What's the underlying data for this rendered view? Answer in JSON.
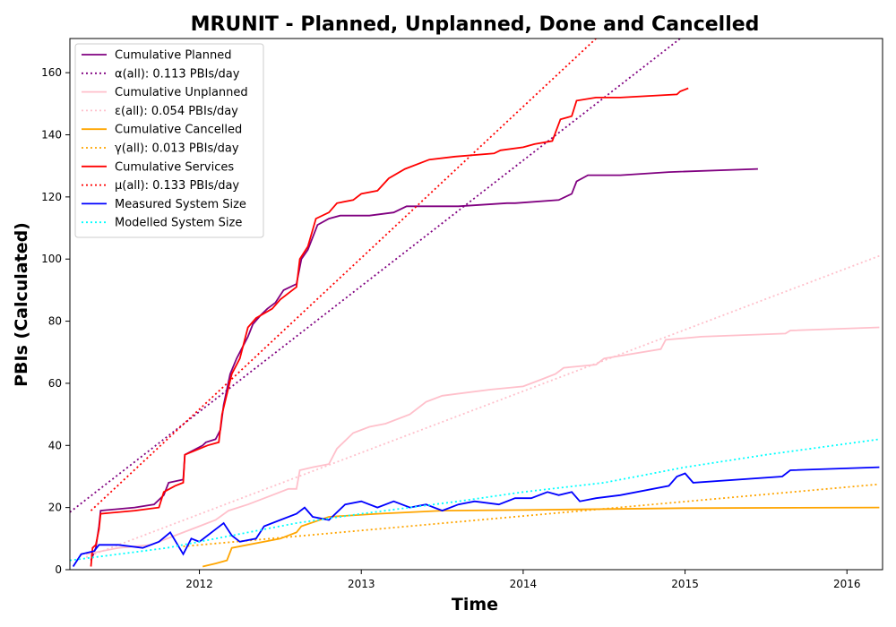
{
  "chart_data": {
    "type": "line",
    "title": "MRUNIT - Planned, Unplanned, Done  and Cancelled",
    "xlabel": "Time",
    "ylabel": "PBIs (Calculated)",
    "xlim": [
      2011.2,
      2016.22
    ],
    "ylim": [
      0,
      171
    ],
    "x_ticks": [
      2012,
      2013,
      2014,
      2015,
      2016
    ],
    "y_ticks": [
      0,
      20,
      40,
      60,
      80,
      100,
      120,
      140,
      160
    ],
    "grid": false,
    "legend_position": "upper-left",
    "series": [
      {
        "name": "Cumulative Planned",
        "style": "solid",
        "color": "#800080",
        "points": [
          [
            2011.33,
            3
          ],
          [
            2011.36,
            7
          ],
          [
            2011.38,
            14
          ],
          [
            2011.39,
            19
          ],
          [
            2011.6,
            20
          ],
          [
            2011.72,
            21
          ],
          [
            2011.78,
            24
          ],
          [
            2011.81,
            28
          ],
          [
            2011.9,
            29
          ],
          [
            2011.91,
            37
          ],
          [
            2012.02,
            40
          ],
          [
            2012.04,
            41
          ],
          [
            2012.1,
            42
          ],
          [
            2012.13,
            45
          ],
          [
            2012.15,
            53
          ],
          [
            2012.19,
            63
          ],
          [
            2012.23,
            68
          ],
          [
            2012.26,
            71
          ],
          [
            2012.3,
            75
          ],
          [
            2012.33,
            79
          ],
          [
            2012.38,
            82
          ],
          [
            2012.42,
            84
          ],
          [
            2012.47,
            86
          ],
          [
            2012.52,
            90
          ],
          [
            2012.6,
            92
          ],
          [
            2012.63,
            100
          ],
          [
            2012.67,
            103
          ],
          [
            2012.73,
            111
          ],
          [
            2012.8,
            113
          ],
          [
            2012.87,
            114
          ],
          [
            2012.97,
            114
          ],
          [
            2013.05,
            114
          ],
          [
            2013.2,
            115
          ],
          [
            2013.28,
            117
          ],
          [
            2013.6,
            117
          ],
          [
            2013.9,
            118
          ],
          [
            2013.95,
            118
          ],
          [
            2014.22,
            119
          ],
          [
            2014.3,
            121
          ],
          [
            2014.33,
            125
          ],
          [
            2014.4,
            127
          ],
          [
            2014.6,
            127
          ],
          [
            2014.9,
            128
          ],
          [
            2015.45,
            129
          ]
        ]
      },
      {
        "name": "α(all): 0.113 PBIs/day",
        "style": "dotted",
        "color": "#800080",
        "points": [
          [
            2011.2,
            18.5
          ],
          [
            2014.97,
            171
          ]
        ]
      },
      {
        "name": "Cumulative Unplanned",
        "style": "solid",
        "color": "#ffc0cb",
        "points": [
          [
            2011.3,
            5
          ],
          [
            2011.5,
            7
          ],
          [
            2011.7,
            8
          ],
          [
            2011.85,
            11
          ],
          [
            2012.0,
            14
          ],
          [
            2012.1,
            16
          ],
          [
            2012.18,
            19
          ],
          [
            2012.3,
            21
          ],
          [
            2012.45,
            24
          ],
          [
            2012.55,
            26
          ],
          [
            2012.6,
            26
          ],
          [
            2012.62,
            32
          ],
          [
            2012.7,
            33
          ],
          [
            2012.8,
            34
          ],
          [
            2012.85,
            39
          ],
          [
            2012.95,
            44
          ],
          [
            2013.05,
            46
          ],
          [
            2013.15,
            47
          ],
          [
            2013.3,
            50
          ],
          [
            2013.4,
            54
          ],
          [
            2013.5,
            56
          ],
          [
            2013.8,
            58
          ],
          [
            2014.0,
            59
          ],
          [
            2014.1,
            61
          ],
          [
            2014.2,
            63
          ],
          [
            2014.25,
            65
          ],
          [
            2014.45,
            66
          ],
          [
            2014.5,
            68
          ],
          [
            2014.85,
            71
          ],
          [
            2014.88,
            74
          ],
          [
            2015.1,
            75
          ],
          [
            2015.62,
            76
          ],
          [
            2015.65,
            77
          ],
          [
            2016.2,
            78
          ]
        ]
      },
      {
        "name": "ε(all): 0.054 PBIs/day",
        "style": "dotted",
        "color": "#ffc0cb",
        "points": [
          [
            2011.3,
            4
          ],
          [
            2016.2,
            101
          ]
        ]
      },
      {
        "name": "Cumulative Cancelled",
        "style": "solid",
        "color": "#ffa500",
        "points": [
          [
            2012.02,
            1
          ],
          [
            2012.1,
            2
          ],
          [
            2012.17,
            3
          ],
          [
            2012.2,
            7
          ],
          [
            2012.5,
            10
          ],
          [
            2012.6,
            12
          ],
          [
            2012.63,
            14
          ],
          [
            2012.8,
            17
          ],
          [
            2013.1,
            18
          ],
          [
            2013.5,
            19
          ],
          [
            2014.0,
            19.2
          ],
          [
            2015.0,
            19.8
          ],
          [
            2016.2,
            20
          ]
        ]
      },
      {
        "name": "γ(all): 0.013 PBIs/day",
        "style": "dotted",
        "color": "#ffa500",
        "points": [
          [
            2011.9,
            7.5
          ],
          [
            2016.2,
            27.5
          ]
        ]
      },
      {
        "name": "Cumulative Services",
        "style": "solid",
        "color": "#ff0000",
        "points": [
          [
            2011.33,
            1
          ],
          [
            2011.34,
            7
          ],
          [
            2011.36,
            8
          ],
          [
            2011.38,
            13
          ],
          [
            2011.39,
            18
          ],
          [
            2011.6,
            19
          ],
          [
            2011.75,
            20
          ],
          [
            2011.78,
            25
          ],
          [
            2011.85,
            27
          ],
          [
            2011.9,
            28
          ],
          [
            2011.91,
            37
          ],
          [
            2012.05,
            40
          ],
          [
            2012.12,
            41
          ],
          [
            2012.14,
            50
          ],
          [
            2012.2,
            63
          ],
          [
            2012.25,
            68
          ],
          [
            2012.3,
            78
          ],
          [
            2012.35,
            81
          ],
          [
            2012.45,
            84
          ],
          [
            2012.5,
            87
          ],
          [
            2012.6,
            91
          ],
          [
            2012.62,
            100
          ],
          [
            2012.67,
            104
          ],
          [
            2012.72,
            113
          ],
          [
            2012.8,
            115
          ],
          [
            2012.85,
            118
          ],
          [
            2012.95,
            119
          ],
          [
            2013.0,
            121
          ],
          [
            2013.1,
            122
          ],
          [
            2013.17,
            126
          ],
          [
            2013.27,
            129
          ],
          [
            2013.42,
            132
          ],
          [
            2013.58,
            133
          ],
          [
            2013.82,
            134
          ],
          [
            2013.86,
            135
          ],
          [
            2014.0,
            136
          ],
          [
            2014.07,
            137
          ],
          [
            2014.18,
            138
          ],
          [
            2014.23,
            145
          ],
          [
            2014.3,
            146
          ],
          [
            2014.33,
            151
          ],
          [
            2014.45,
            152
          ],
          [
            2014.6,
            152
          ],
          [
            2014.95,
            153
          ],
          [
            2014.97,
            154
          ],
          [
            2015.02,
            155
          ]
        ]
      },
      {
        "name": "μ(all): 0.133 PBIs/day",
        "style": "dotted",
        "color": "#ff0000",
        "points": [
          [
            2011.33,
            19
          ],
          [
            2014.45,
            171
          ]
        ]
      },
      {
        "name": "Measured System Size",
        "style": "solid",
        "color": "#0000ff",
        "points": [
          [
            2011.22,
            1
          ],
          [
            2011.27,
            5
          ],
          [
            2011.35,
            6
          ],
          [
            2011.38,
            8
          ],
          [
            2011.5,
            8
          ],
          [
            2011.65,
            7
          ],
          [
            2011.75,
            9
          ],
          [
            2011.82,
            12
          ],
          [
            2011.9,
            5
          ],
          [
            2011.95,
            10
          ],
          [
            2012.0,
            9
          ],
          [
            2012.05,
            11
          ],
          [
            2012.1,
            13
          ],
          [
            2012.15,
            15
          ],
          [
            2012.2,
            11
          ],
          [
            2012.25,
            9
          ],
          [
            2012.35,
            10
          ],
          [
            2012.4,
            14
          ],
          [
            2012.5,
            16
          ],
          [
            2012.6,
            18
          ],
          [
            2012.65,
            20
          ],
          [
            2012.7,
            17
          ],
          [
            2012.8,
            16
          ],
          [
            2012.9,
            21
          ],
          [
            2013.0,
            22
          ],
          [
            2013.1,
            20
          ],
          [
            2013.2,
            22
          ],
          [
            2013.3,
            20
          ],
          [
            2013.4,
            21
          ],
          [
            2013.5,
            19
          ],
          [
            2013.6,
            21
          ],
          [
            2013.7,
            22
          ],
          [
            2013.85,
            21
          ],
          [
            2013.95,
            23
          ],
          [
            2014.05,
            23
          ],
          [
            2014.15,
            25
          ],
          [
            2014.22,
            24
          ],
          [
            2014.3,
            25
          ],
          [
            2014.35,
            22
          ],
          [
            2014.45,
            23
          ],
          [
            2014.6,
            24
          ],
          [
            2014.9,
            27
          ],
          [
            2014.95,
            30
          ],
          [
            2015.0,
            31
          ],
          [
            2015.05,
            28
          ],
          [
            2015.6,
            30
          ],
          [
            2015.65,
            32
          ],
          [
            2016.2,
            33
          ]
        ]
      },
      {
        "name": "Modelled System Size",
        "style": "dotted",
        "color": "#00ffff",
        "points": [
          [
            2011.2,
            3
          ],
          [
            2011.5,
            5
          ],
          [
            2011.8,
            7
          ],
          [
            2012.0,
            9
          ],
          [
            2012.3,
            12
          ],
          [
            2012.6,
            15
          ],
          [
            2013.0,
            18
          ],
          [
            2013.3,
            20
          ],
          [
            2013.6,
            22
          ],
          [
            2014.0,
            25
          ],
          [
            2014.5,
            28
          ],
          [
            2015.0,
            33
          ],
          [
            2015.5,
            37
          ],
          [
            2016.2,
            42
          ]
        ]
      }
    ]
  }
}
